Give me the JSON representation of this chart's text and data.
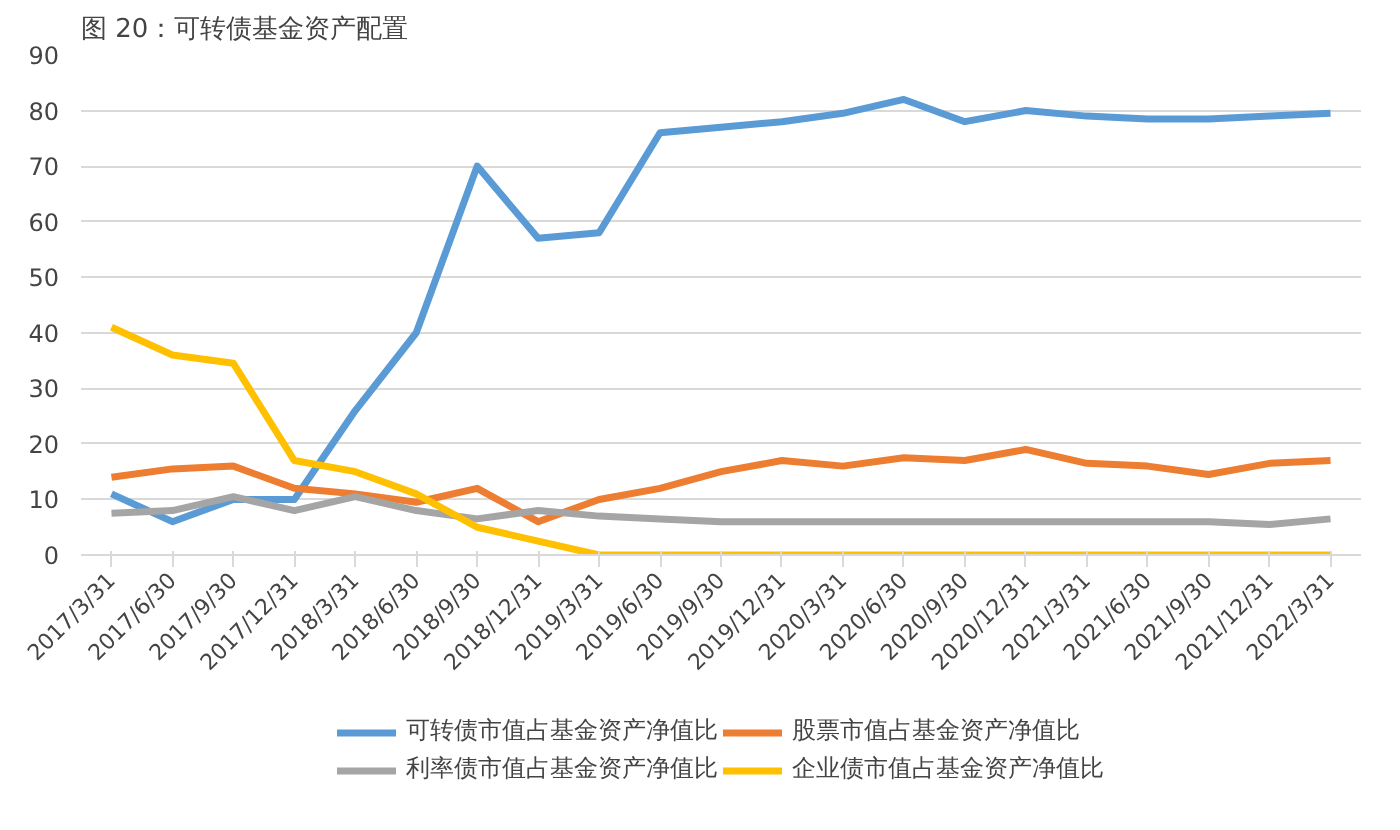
{
  "chart_data": {
    "type": "line",
    "title": "图 20：可转债基金资产配置",
    "categories": [
      "2017/3/31",
      "2017/6/30",
      "2017/9/30",
      "2017/12/31",
      "2018/3/31",
      "2018/6/30",
      "2018/9/30",
      "2018/12/31",
      "2019/3/31",
      "2019/6/30",
      "2019/9/30",
      "2019/12/31",
      "2020/3/31",
      "2020/6/30",
      "2020/9/30",
      "2020/12/31",
      "2021/3/31",
      "2021/6/30",
      "2021/9/30",
      "2021/12/31",
      "2022/3/31"
    ],
    "series": [
      {
        "name": "可转债市值占基金资产净值比",
        "color": "#5b9bd5",
        "values": [
          11,
          6,
          10,
          10,
          26,
          40,
          70,
          57,
          58,
          76,
          77,
          78,
          79.5,
          82,
          78,
          80,
          79,
          78.5,
          78.5,
          79,
          79.5
        ]
      },
      {
        "name": "股票市值占基金资产净值比",
        "color": "#ed7d31",
        "values": [
          14,
          15.5,
          16,
          12,
          11,
          9.5,
          12,
          6,
          10,
          12,
          15,
          17,
          16,
          17.5,
          17,
          19,
          16.5,
          16,
          14.5,
          16.5,
          17
        ]
      },
      {
        "name": "利率债市值占基金资产净值比",
        "color": "#a5a5a5",
        "values": [
          7.5,
          8,
          10.5,
          8,
          10.5,
          8,
          6.5,
          8,
          7,
          6.5,
          6,
          6,
          6,
          6,
          6,
          6,
          6,
          6,
          6,
          5.5,
          6.5
        ]
      },
      {
        "name": "企业债市值占基金资产净值比",
        "color": "#ffc000",
        "values": [
          41,
          36,
          34.5,
          17,
          15,
          11,
          5,
          2.5,
          0,
          0,
          0,
          0,
          0,
          0,
          0,
          0,
          0,
          0,
          0,
          0,
          0
        ]
      }
    ],
    "ylim": [
      0,
      90
    ],
    "yticks": [
      0,
      10,
      20,
      30,
      40,
      50,
      60,
      70,
      80,
      90
    ],
    "grid": "y",
    "legend": "bottom",
    "marker": "none",
    "line_style": "solid"
  }
}
